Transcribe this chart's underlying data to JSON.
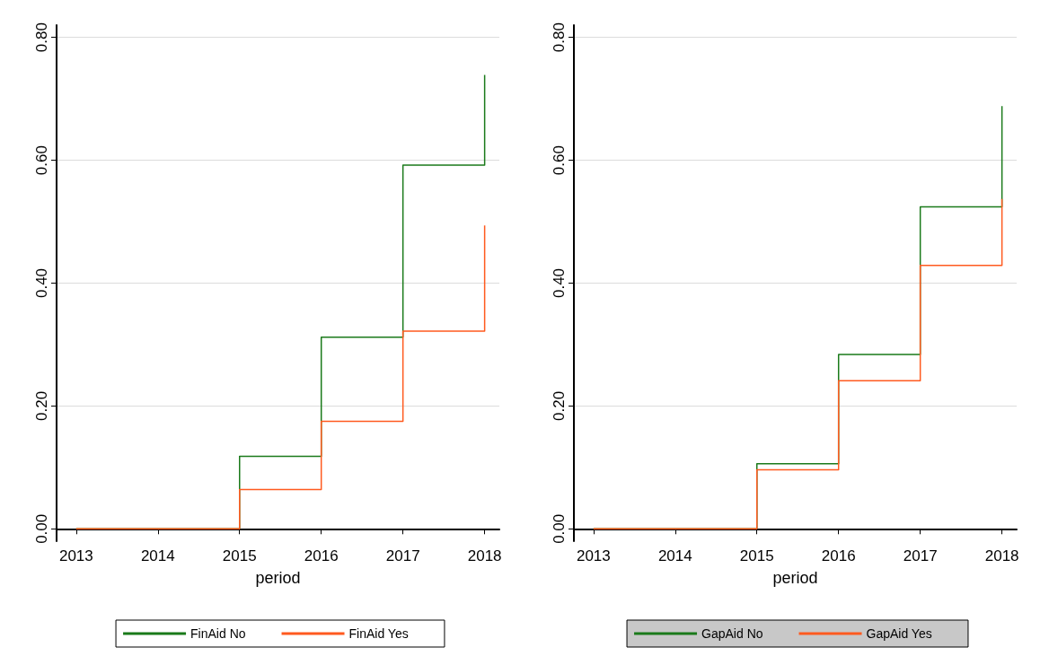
{
  "chart_data": [
    {
      "type": "step",
      "xlabel": "period",
      "x": [
        2013,
        2014,
        2015,
        2016,
        2017,
        2018
      ],
      "xlim": [
        2012.76,
        2018.18
      ],
      "xticks": [
        2013,
        2014,
        2015,
        2016,
        2017,
        2018
      ],
      "ylim": [
        -0.02,
        0.82
      ],
      "yticks": [
        {
          "value": 0,
          "label": "0.00"
        },
        {
          "value": 0.2,
          "label": "0.20"
        },
        {
          "value": 0.4,
          "label": "0.40"
        },
        {
          "value": 0.6,
          "label": "0.60"
        },
        {
          "value": 0.8,
          "label": "0.80"
        }
      ],
      "grid": "y",
      "legend": "bottom",
      "marker": "none",
      "series": [
        {
          "name": "FinAid No",
          "color": "#1a7a1a",
          "values": [
            0,
            0,
            0.118,
            0.312,
            0.592,
            0.739
          ]
        },
        {
          "name": "FinAid Yes",
          "color": "#ff5a1f",
          "values": [
            0,
            0,
            0.064,
            0.175,
            0.322,
            0.494
          ]
        }
      ]
    },
    {
      "type": "step",
      "xlabel": "period",
      "x": [
        2013,
        2014,
        2015,
        2016,
        2017,
        2018
      ],
      "xlim": [
        2012.76,
        2018.18
      ],
      "xticks": [
        2013,
        2014,
        2015,
        2016,
        2017,
        2018
      ],
      "ylim": [
        -0.02,
        0.82
      ],
      "yticks": [
        {
          "value": 0,
          "label": "0.00"
        },
        {
          "value": 0.2,
          "label": "0.20"
        },
        {
          "value": 0.4,
          "label": "0.40"
        },
        {
          "value": 0.6,
          "label": "0.60"
        },
        {
          "value": 0.8,
          "label": "0.80"
        }
      ],
      "grid": "y",
      "legend": "bottom",
      "marker": "none",
      "series": [
        {
          "name": "GapAid No",
          "color": "#1a7a1a",
          "values": [
            0,
            0,
            0.106,
            0.284,
            0.524,
            0.688
          ]
        },
        {
          "name": "GapAid Yes",
          "color": "#ff5a1f",
          "values": [
            0,
            0,
            0.096,
            0.241,
            0.429,
            0.537
          ]
        }
      ]
    }
  ]
}
